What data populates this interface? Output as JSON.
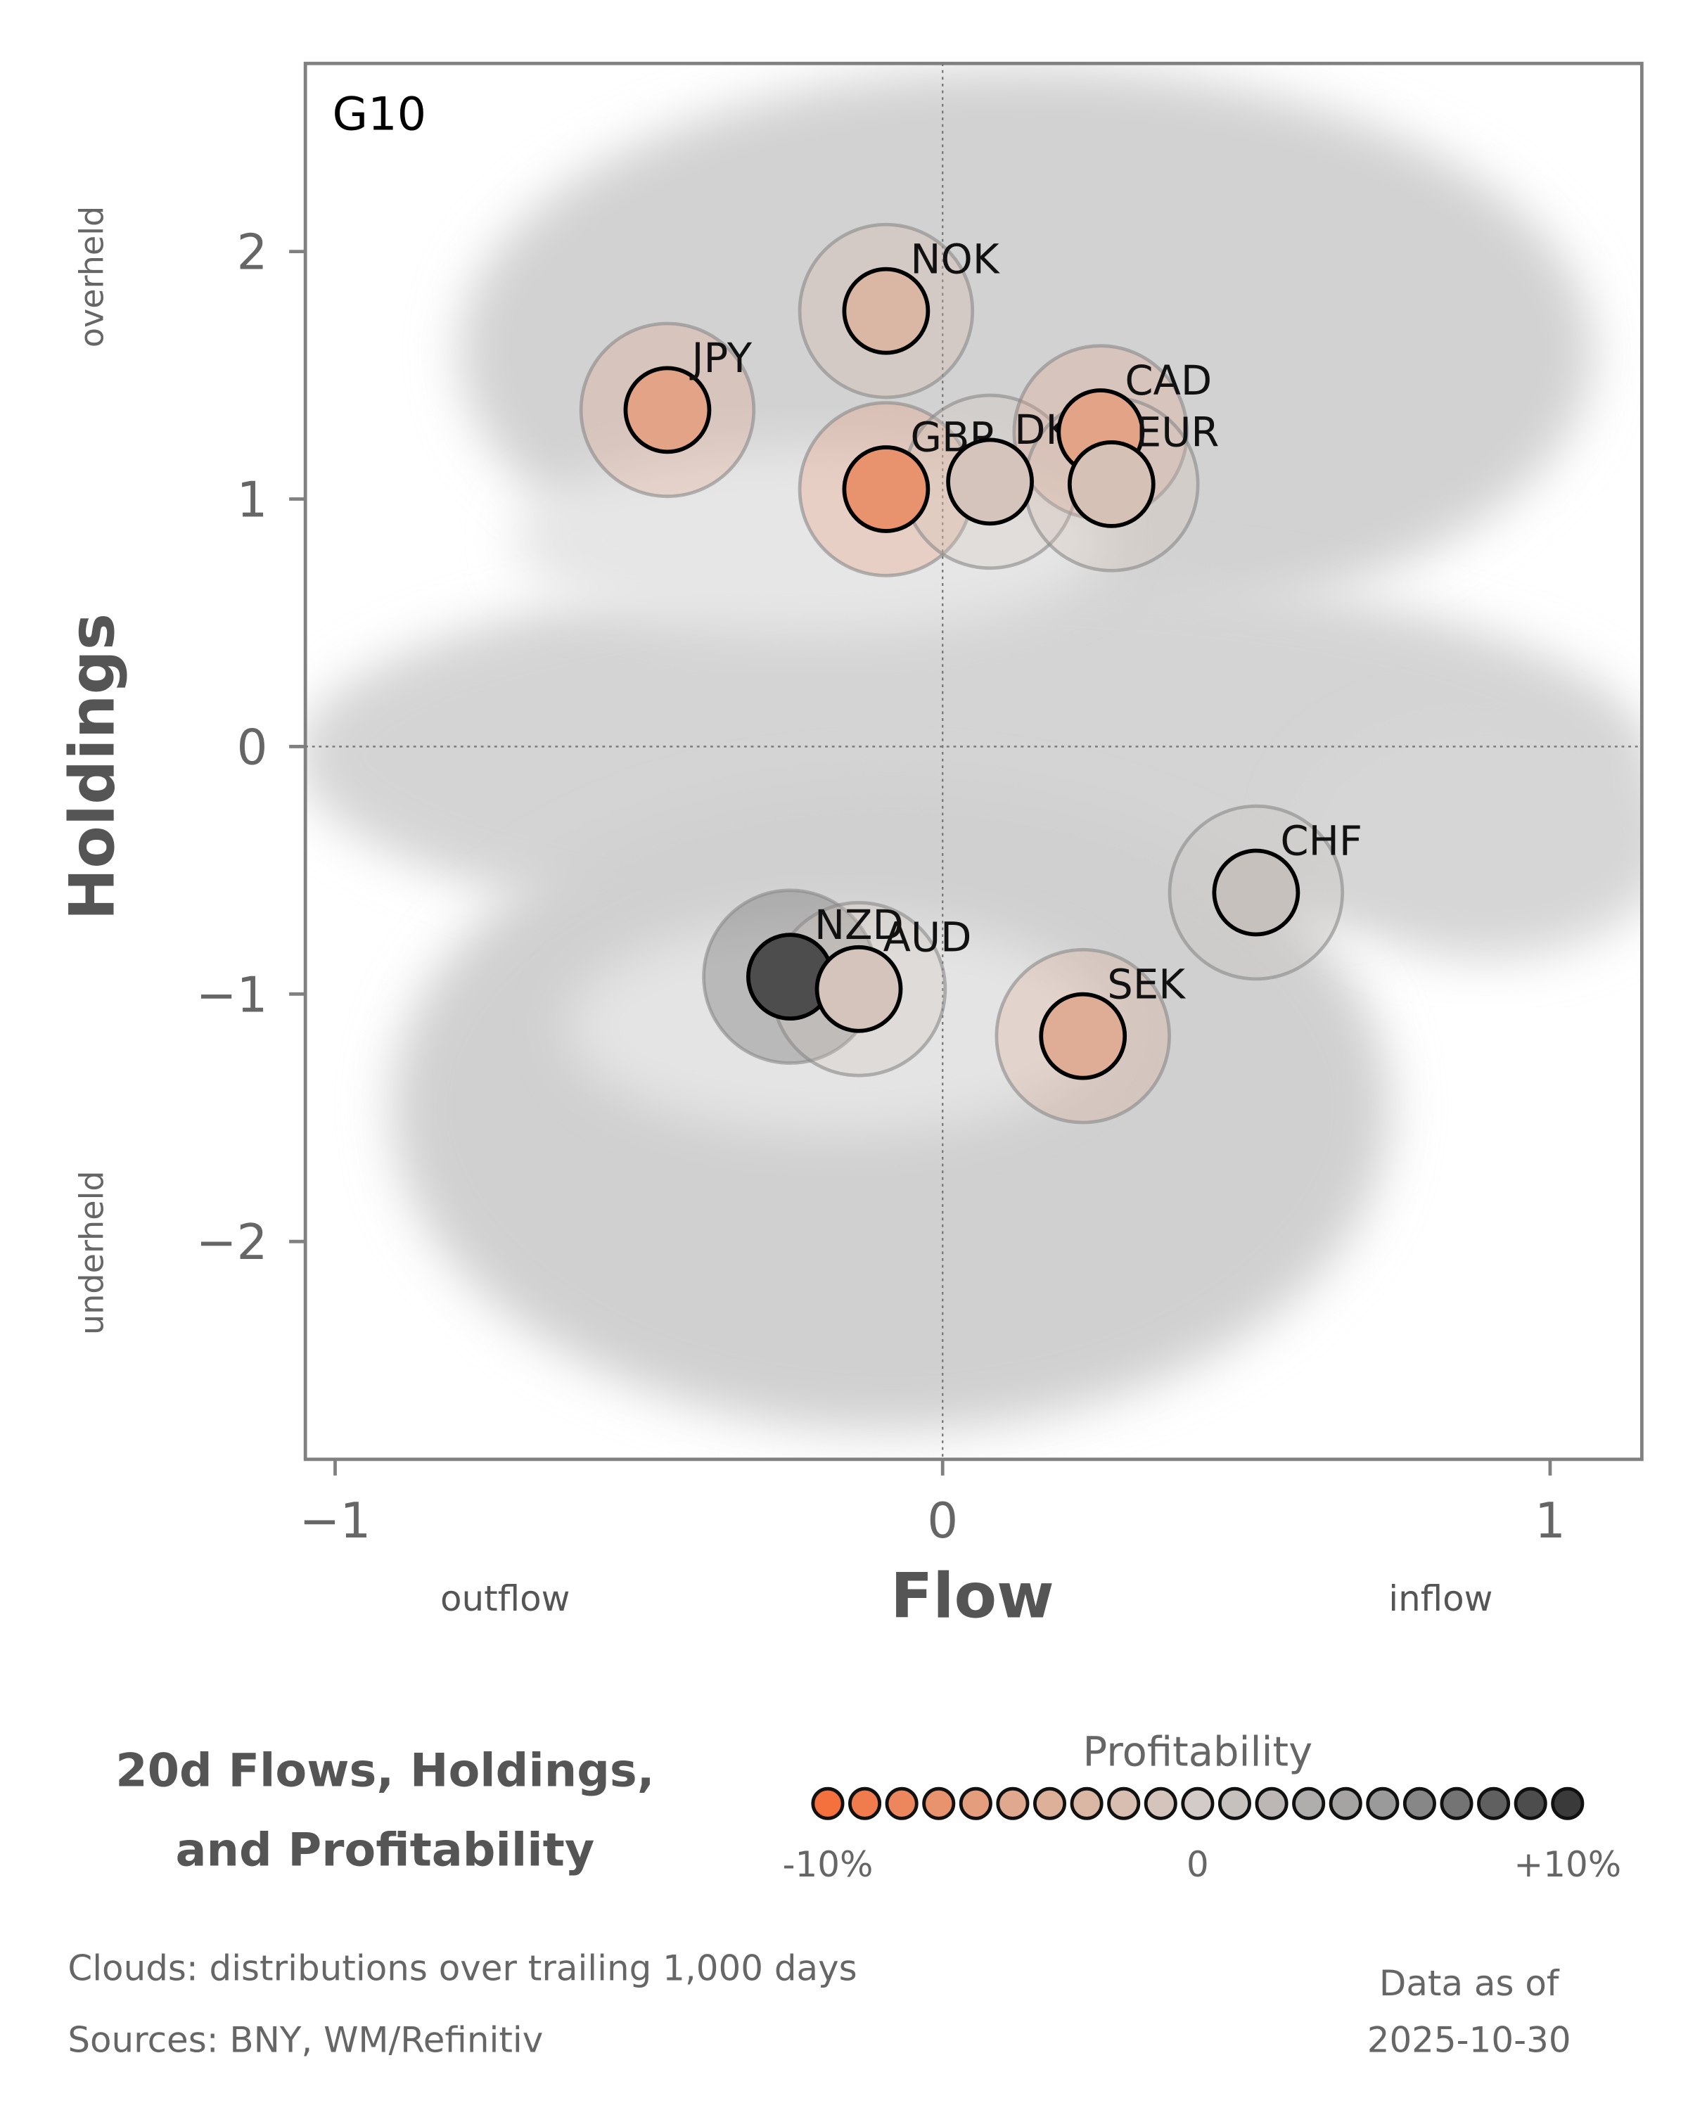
{
  "chart_data": {
    "type": "scatter",
    "panel_label": "G10",
    "xlabel": "Flow",
    "ylabel": "Holdings",
    "x_low_label": "outflow",
    "x_high_label": "inflow",
    "y_high_label": "overheld",
    "y_low_label": "underheld",
    "xlim": [
      -1.049,
      1.151
    ],
    "ylim": [
      -2.88,
      2.76
    ],
    "xticks": [
      {
        "value": -1,
        "label": "−1"
      },
      0,
      1
    ],
    "yticks": [
      {
        "value": -2,
        "label": "−2"
      },
      {
        "value": -1,
        "label": "−1"
      },
      0,
      1,
      2
    ],
    "labels": [
      "NOK",
      "JPY",
      "GBP",
      "DKK",
      "CAD",
      "EUR",
      "CHF",
      "NZD",
      "AUD",
      "SEK"
    ],
    "x": [
      -0.093,
      -0.453,
      -0.093,
      0.078,
      0.26,
      0.278,
      0.516,
      -0.251,
      -0.138,
      0.231
    ],
    "y": [
      1.76,
      1.36,
      1.04,
      1.07,
      1.27,
      1.06,
      -0.59,
      -0.93,
      -0.98,
      -1.17
    ],
    "profitability": [
      -3,
      -5.5,
      -7,
      -1,
      -5.5,
      -1.5,
      1,
      9,
      -1,
      -4.5
    ],
    "title_lines": [
      "20d Flows, Holdings,",
      "and Profitability"
    ],
    "colorbar": {
      "title": "Profitability",
      "lim": [
        -10,
        10
      ],
      "anchor_colors": [
        "#f4703c",
        "#e0a98f",
        "#d2cbc7",
        "#9a9a9a",
        "#3a3a3a"
      ],
      "ticks": [
        {
          "value": -10,
          "label": "-10%"
        },
        0,
        {
          "value": 10,
          "label": "+10%"
        }
      ]
    },
    "notes": [
      "Clouds:  distributions over trailing 1,000 days",
      "Sources:  BNY, WM/Refinitiv"
    ],
    "asof_lines": [
      "Data as of",
      "2025-10-30"
    ]
  }
}
